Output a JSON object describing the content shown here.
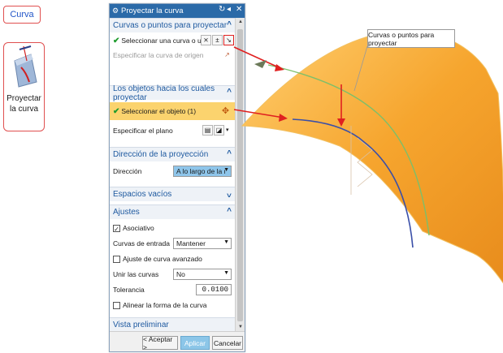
{
  "ribbon": {
    "curva_label": "Curva",
    "project_label_line1": "Proyectar",
    "project_label_line2": "la curva"
  },
  "dialog": {
    "title": "Proyectar la curva",
    "sections": {
      "curves": {
        "header": "Curvas o puntos para proyectar",
        "select_curve": "Seleccionar una curva o un punto",
        "source_curve": "Especificar la curva de origen"
      },
      "objects": {
        "header": "Los objetos hacia los cuales proyectar",
        "select_object": "Seleccionar el objeto (1)",
        "specify_plane": "Especificar el plano"
      },
      "direction": {
        "header": "Dirección de la proyección",
        "label": "Dirección",
        "value": "A lo largo de la norr"
      },
      "gaps": {
        "header": "Espacios vacíos"
      },
      "settings": {
        "header": "Ajustes",
        "associative": "Asociativo",
        "input_curves_label": "Curvas de entrada",
        "input_curves_value": "Mantener",
        "advanced_fit": "Ajuste de curva avanzado",
        "join_curves_label": "Unir las curvas",
        "join_curves_value": "No",
        "tolerance_label": "Tolerancia",
        "tolerance_value": "0.0100",
        "align_shape": "Alinear la forma de la curva"
      },
      "preview": {
        "header": "Vista preliminar"
      }
    },
    "buttons": {
      "accept": "< Aceptar >",
      "apply": "Aplicar",
      "cancel": "Cancelar"
    }
  },
  "viewport": {
    "callout": "Curvas o puntos para proyectar"
  },
  "colors": {
    "surface_orange": "#f6a52e",
    "curve_green": "#7cbf6a",
    "curve_blue": "#3a4fa8",
    "arrow_red": "#e02020",
    "title_blue": "#2b6aa8"
  }
}
